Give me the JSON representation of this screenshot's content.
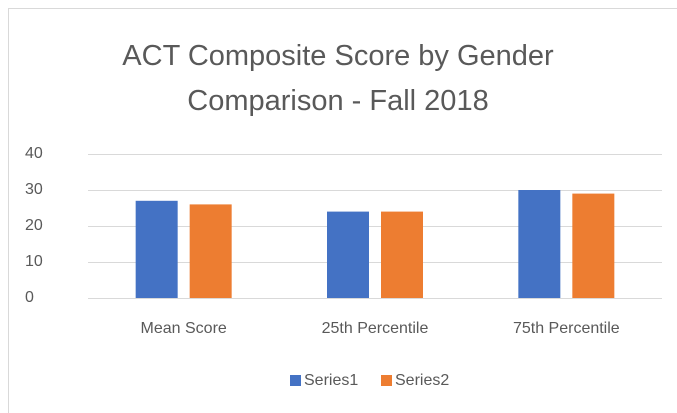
{
  "chart_data": {
    "type": "bar",
    "title": "ACT Composite Score by Gender Comparison - Fall 2018",
    "categories": [
      "Mean Score",
      "25th Percentile",
      "75th Percentile"
    ],
    "series": [
      {
        "name": "Series1",
        "color": "#4472c4",
        "values": [
          27,
          24,
          30
        ]
      },
      {
        "name": "Series2",
        "color": "#ed7d31",
        "values": [
          26,
          24,
          29
        ]
      }
    ],
    "ylim": [
      0,
      40
    ],
    "yticks": [
      0,
      10,
      20,
      30,
      40
    ],
    "grid": true,
    "legend": "bottom"
  }
}
